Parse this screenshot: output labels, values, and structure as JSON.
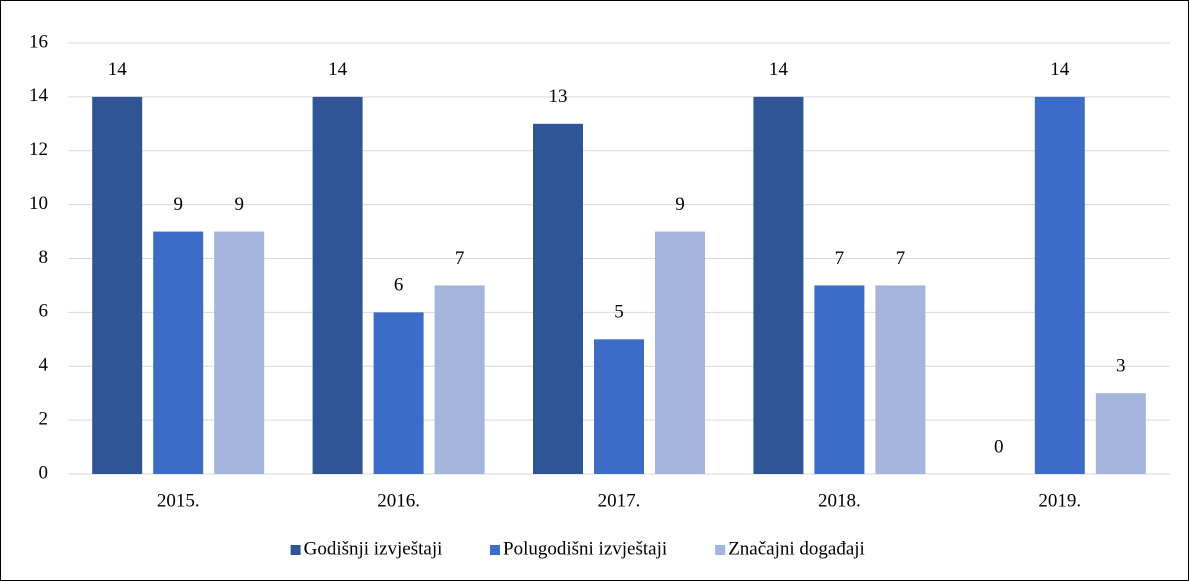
{
  "chart_data": {
    "type": "bar",
    "categories": [
      "2015.",
      "2016.",
      "2017.",
      "2018.",
      "2019."
    ],
    "series": [
      {
        "name": "Godišnji izvještaji",
        "color": "#2f5597",
        "values": [
          14,
          14,
          13,
          14,
          0
        ]
      },
      {
        "name": "Polugodišni izvještaji",
        "color": "#3d6cc8",
        "values": [
          9,
          6,
          5,
          7,
          14
        ]
      },
      {
        "name": "Značajni događaji",
        "color": "#a4b4dc",
        "values": [
          9,
          7,
          9,
          7,
          3
        ]
      }
    ],
    "ylim": [
      0,
      16
    ],
    "yticks": [
      0,
      2,
      4,
      6,
      8,
      10,
      12,
      14,
      16
    ],
    "grid": true,
    "legend": "bottom"
  }
}
